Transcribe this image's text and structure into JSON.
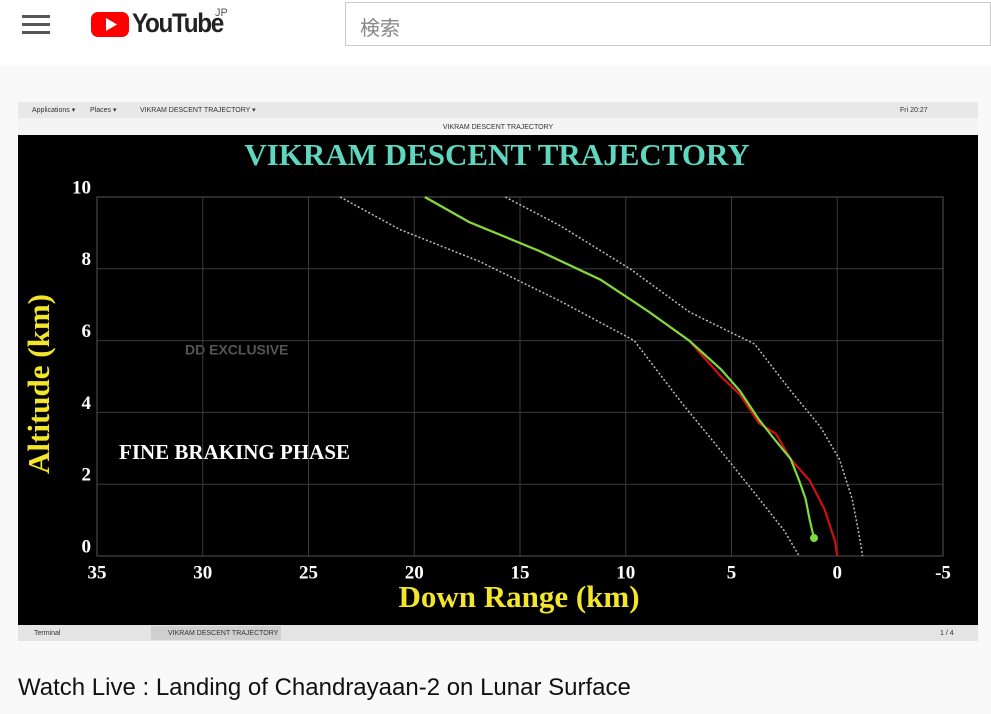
{
  "header": {
    "logo": "YouTube",
    "region": "JP",
    "search_placeholder": "検索"
  },
  "desktop": {
    "menu": [
      "Applications ▾",
      "Places ▾",
      "VIKRAM DESCENT TRAJECTORY ▾"
    ],
    "clock": "Fri 20:27",
    "window_title": "VIKRAM DESCENT TRAJECTORY",
    "taskbar": [
      "Terminal",
      "VIKRAM DESCENT TRAJECTORY"
    ],
    "workspace": "1 / 4"
  },
  "chart_data": {
    "type": "line",
    "title": "VIKRAM DESCENT TRAJECTORY",
    "x_label": "Down Range (km)",
    "y_label": "Altitude (km)",
    "annotations": [
      "DD EXCLUSIVE",
      "FINE BRAKING PHASE"
    ],
    "xlim": [
      35,
      -5
    ],
    "ylim": [
      0,
      10
    ],
    "xticks": [
      35,
      30,
      25,
      20,
      15,
      10,
      5,
      0,
      -5
    ],
    "yticks": [
      0,
      2,
      4,
      6,
      8,
      10
    ],
    "grid": true,
    "series": [
      {
        "color": "#bbbbbb",
        "style": "dotted",
        "x": [
          23.5,
          20.7,
          16.9,
          13.1,
          9.6,
          7.4,
          5.6,
          3.7,
          2.5,
          1.8
        ],
        "values": [
          10,
          9.1,
          8.2,
          7.1,
          6.0,
          4.3,
          3.0,
          1.6,
          0.7,
          0
        ]
      },
      {
        "color": "#bbbbbb",
        "style": "dotted",
        "x": [
          15.7,
          13.1,
          9.8,
          7.0,
          3.9,
          2.2,
          0.8,
          -0.1,
          -0.7,
          -1.0,
          -1.2
        ],
        "values": [
          10,
          9.2,
          8.0,
          6.8,
          5.9,
          4.6,
          3.6,
          2.7,
          1.6,
          0.7,
          0
        ]
      },
      {
        "color": "#d01010",
        "style": "solid",
        "x": [
          19.5,
          17.4,
          14.1,
          11.2,
          8.9,
          7.0,
          5.5,
          4.6,
          3.7,
          2.9,
          2.2,
          1.3,
          0.6,
          0.1,
          0.0
        ],
        "values": [
          10,
          9.3,
          8.5,
          7.7,
          6.8,
          6.0,
          5.0,
          4.5,
          3.7,
          3.4,
          2.7,
          2.1,
          1.3,
          0.4,
          0
        ]
      },
      {
        "color": "#7ddc3a",
        "style": "solid",
        "end_marker": true,
        "x": [
          19.5,
          17.4,
          14.1,
          11.2,
          8.9,
          7.0,
          5.5,
          4.6,
          3.7,
          2.9,
          2.2,
          1.8,
          1.5,
          1.3,
          1.1
        ],
        "values": [
          10,
          9.3,
          8.5,
          7.7,
          6.8,
          6.0,
          5.2,
          4.6,
          3.8,
          3.2,
          2.7,
          2.1,
          1.6,
          1.0,
          0.5
        ]
      }
    ]
  },
  "video_title": "Watch Live : Landing of Chandrayaan-2 on Lunar Surface"
}
